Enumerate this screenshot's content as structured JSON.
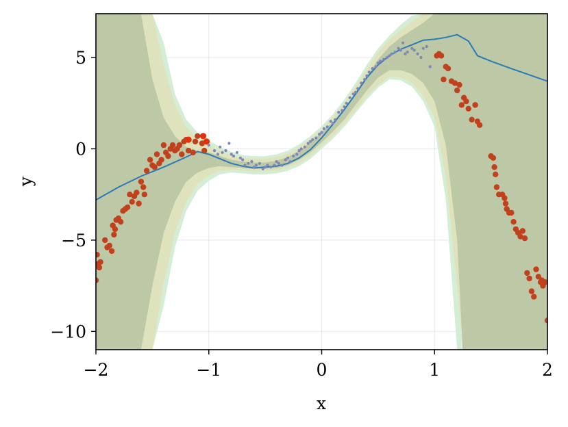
{
  "chart_data": {
    "type": "scatter",
    "xlabel": "x",
    "ylabel": "y",
    "xlim": [
      -2,
      2
    ],
    "ylim": [
      -11,
      7.4
    ],
    "grid": true,
    "xticks": [
      -2,
      -1,
      0,
      1,
      2
    ],
    "xtick_labels": [
      "−2",
      "−1",
      "0",
      "1",
      "2"
    ],
    "yticks": [
      5,
      0,
      -5,
      -10
    ],
    "ytick_labels": [
      "5",
      "0",
      "−5",
      "−10"
    ],
    "colors": {
      "band_outer": "#d4eed6",
      "band_mid": "#dfe3bd",
      "band_inner": "#bcc8a6",
      "prediction_line": "#2a7ab8",
      "test_points": "#c0411c",
      "highlight_points": "#e4300a",
      "train_points": "#7f86b8"
    },
    "bands": {
      "x": [
        -2.0,
        -1.9,
        -1.8,
        -1.7,
        -1.6,
        -1.5,
        -1.4,
        -1.3,
        -1.2,
        -1.1,
        -1.0,
        -0.9,
        -0.8,
        -0.7,
        -0.6,
        -0.5,
        -0.4,
        -0.3,
        -0.2,
        -0.1,
        0.0,
        0.1,
        0.2,
        0.3,
        0.4,
        0.5,
        0.6,
        0.7,
        0.8,
        0.9,
        1.0,
        1.1,
        1.2,
        1.25,
        1.3,
        1.4,
        1.5,
        1.6,
        1.7,
        1.8,
        1.9,
        2.0
      ],
      "inner_upper": [
        7.4,
        7.4,
        7.4,
        7.4,
        7.4,
        3.8,
        1.7,
        0.7,
        0.1,
        -0.1,
        -0.2,
        -0.4,
        -0.6,
        -0.7,
        -0.75,
        -0.75,
        -0.65,
        -0.45,
        -0.1,
        0.35,
        0.9,
        1.5,
        2.2,
        3.1,
        4.0,
        4.9,
        5.6,
        6.1,
        6.5,
        6.9,
        7.4,
        7.4,
        7.4,
        7.4,
        7.4,
        7.4,
        7.4,
        7.4,
        7.4,
        7.4,
        7.4,
        7.4
      ],
      "inner_lower": [
        -11,
        -11,
        -11,
        -11,
        -11,
        -7.5,
        -4.6,
        -2.9,
        -1.8,
        -1.3,
        -1.05,
        -0.95,
        -1.0,
        -1.05,
        -1.1,
        -1.1,
        -1.05,
        -0.9,
        -0.6,
        -0.2,
        0.35,
        0.95,
        1.6,
        2.4,
        3.2,
        3.9,
        4.3,
        4.3,
        4.1,
        3.6,
        2.6,
        0.2,
        -5.0,
        -11,
        -11,
        -11,
        -11,
        -11,
        -11,
        -11,
        -11,
        -11
      ],
      "mid_upper": [
        7.4,
        7.4,
        7.4,
        7.4,
        7.4,
        7.4,
        4.6,
        2.4,
        1.2,
        0.6,
        0.2,
        -0.1,
        -0.35,
        -0.5,
        -0.55,
        -0.55,
        -0.45,
        -0.25,
        0.1,
        0.55,
        1.1,
        1.75,
        2.5,
        3.4,
        4.4,
        5.3,
        6.0,
        6.5,
        7.0,
        7.4,
        7.4,
        7.4,
        7.4,
        7.4,
        7.4,
        7.4,
        7.4,
        7.4,
        7.4,
        7.4,
        7.4,
        7.4
      ],
      "mid_lower": [
        -11,
        -11,
        -11,
        -11,
        -11,
        -11,
        -7.4,
        -4.6,
        -2.9,
        -1.9,
        -1.45,
        -1.2,
        -1.15,
        -1.2,
        -1.25,
        -1.25,
        -1.2,
        -1.05,
        -0.8,
        -0.4,
        0.15,
        0.7,
        1.35,
        2.1,
        2.9,
        3.5,
        3.95,
        3.9,
        3.6,
        2.9,
        1.7,
        -1.5,
        -7.5,
        -11,
        -11,
        -11,
        -11,
        -11,
        -11,
        -11,
        -11,
        -11
      ],
      "outer_upper": [
        7.4,
        7.4,
        7.4,
        7.4,
        7.4,
        7.4,
        5.8,
        3.0,
        1.6,
        0.9,
        0.45,
        0.1,
        -0.15,
        -0.35,
        -0.4,
        -0.4,
        -0.3,
        -0.1,
        0.25,
        0.7,
        1.25,
        1.9,
        2.7,
        3.6,
        4.6,
        5.5,
        6.2,
        6.8,
        7.3,
        7.4,
        7.4,
        7.4,
        7.4,
        7.4,
        7.4,
        7.4,
        7.4,
        7.4,
        7.4,
        7.4,
        7.4,
        7.4
      ],
      "outer_lower": [
        -11,
        -11,
        -11,
        -11,
        -11,
        -11,
        -8.6,
        -5.4,
        -3.4,
        -2.3,
        -1.75,
        -1.4,
        -1.3,
        -1.35,
        -1.4,
        -1.4,
        -1.35,
        -1.2,
        -0.95,
        -0.55,
        0.0,
        0.55,
        1.2,
        1.95,
        2.7,
        3.35,
        3.8,
        3.75,
        3.4,
        2.6,
        1.2,
        -2.8,
        -11,
        -11,
        -11,
        -11,
        -11,
        -11,
        -11,
        -11,
        -11,
        -11
      ]
    },
    "series": [
      {
        "type": "line",
        "x": [
          -2.0,
          -1.8,
          -1.6,
          -1.4,
          -1.2,
          -1.1,
          -1.0,
          -0.9,
          -0.8,
          -0.7,
          -0.6,
          -0.5,
          -0.4,
          -0.3,
          -0.2,
          -0.1,
          0.0,
          0.1,
          0.2,
          0.3,
          0.4,
          0.5,
          0.6,
          0.7,
          0.8,
          0.9,
          1.0,
          1.1,
          1.2,
          1.3,
          1.38,
          1.5,
          1.7,
          2.0
        ],
        "y": [
          -2.8,
          -2.1,
          -1.5,
          -1.0,
          -0.45,
          -0.15,
          -0.3,
          -0.55,
          -0.8,
          -0.95,
          -1.05,
          -1.0,
          -0.95,
          -0.8,
          -0.5,
          -0.05,
          0.6,
          1.35,
          2.15,
          3.0,
          3.9,
          4.6,
          5.1,
          5.45,
          5.7,
          5.95,
          6.0,
          6.1,
          6.25,
          5.9,
          5.1,
          4.8,
          4.35,
          3.7
        ]
      },
      {
        "type": "scatter",
        "role": "test",
        "x": [
          -2.0,
          -1.99,
          -1.98,
          -1.97,
          -1.96,
          -1.92,
          -1.9,
          -1.88,
          -1.86,
          -1.85,
          -1.84,
          -1.83,
          -1.82,
          -1.8,
          -1.78,
          -1.76,
          -1.74,
          -1.72,
          -1.7,
          -1.68,
          -1.66,
          -1.64,
          -1.62,
          -1.6,
          -1.58,
          -1.57,
          -1.55,
          -1.52,
          -1.5,
          -1.48,
          -1.46,
          -1.44,
          -1.42,
          -1.4,
          -1.38,
          -1.36,
          -1.34,
          -1.32,
          -1.3,
          -1.28,
          -1.26,
          -1.24,
          -1.22,
          -1.2,
          -1.18,
          -1.14,
          -1.12,
          -1.1,
          -1.06,
          -1.04,
          1.02,
          1.04,
          1.06,
          1.08,
          1.1,
          1.12,
          1.15,
          1.18,
          1.2,
          1.22,
          1.24,
          1.26,
          1.28,
          1.3,
          1.33,
          1.36,
          1.38,
          1.4,
          1.5,
          1.52,
          1.53,
          1.54,
          1.55,
          1.57,
          1.6,
          1.62,
          1.63,
          1.64,
          1.66,
          1.68,
          1.7,
          1.72,
          1.74,
          1.76,
          1.78,
          1.8,
          1.82,
          1.84,
          1.86,
          1.88,
          1.9,
          1.92,
          1.94,
          1.95,
          1.96,
          1.98,
          2.0
        ],
        "y": [
          -7.2,
          -5.8,
          -6.3,
          -6.5,
          -6.2,
          -5.0,
          -5.4,
          -5.3,
          -5.6,
          -4.2,
          -4.7,
          -4.4,
          -3.9,
          -3.8,
          -4.0,
          -3.4,
          -3.3,
          -3.2,
          -2.5,
          -2.9,
          -2.6,
          -2.4,
          -3.0,
          -1.8,
          -2.1,
          -2.5,
          -1.2,
          -0.6,
          -0.9,
          -1.0,
          -0.3,
          -0.8,
          -0.6,
          0.2,
          -0.2,
          -0.4,
          0.0,
          0.2,
          -0.1,
          0.0,
          0.2,
          -0.3,
          0.4,
          0.5,
          -0.1,
          -0.2,
          0.4,
          0.7,
          0.3,
          -0.1,
          5.1,
          5.2,
          5.1,
          3.8,
          4.5,
          4.4,
          3.7,
          3.6,
          3.2,
          3.5,
          2.4,
          2.8,
          2.6,
          2.2,
          1.6,
          2.4,
          1.5,
          1.3,
          -0.4,
          -0.5,
          -1.0,
          -1.4,
          -2.1,
          -2.5,
          -2.5,
          -2.7,
          -3.0,
          -3.3,
          -3.5,
          -3.5,
          -4.0,
          -4.4,
          -4.6,
          -4.8,
          -4.5,
          -4.9,
          -6.8,
          -7.1,
          -7.8,
          -8.1,
          -6.6,
          -7.0,
          -7.3,
          -7.2,
          -7.5,
          -7.3,
          -9.4
        ]
      },
      {
        "type": "scatter",
        "role": "highlight",
        "x": [
          -1.18,
          -1.05,
          -1.02
        ],
        "y": [
          0.5,
          0.7,
          0.4
        ]
      },
      {
        "type": "scatter",
        "role": "train",
        "x": [
          -1.0,
          -0.95,
          -0.92,
          -0.9,
          -0.88,
          -0.85,
          -0.82,
          -0.8,
          -0.78,
          -0.75,
          -0.72,
          -0.7,
          -0.68,
          -0.65,
          -0.62,
          -0.6,
          -0.58,
          -0.55,
          -0.52,
          -0.5,
          -0.48,
          -0.45,
          -0.42,
          -0.4,
          -0.38,
          -0.35,
          -0.32,
          -0.3,
          -0.28,
          -0.25,
          -0.22,
          -0.2,
          -0.18,
          -0.15,
          -0.12,
          -0.1,
          -0.08,
          -0.05,
          -0.02,
          0.0,
          0.02,
          0.05,
          0.08,
          0.1,
          0.12,
          0.15,
          0.18,
          0.2,
          0.22,
          0.25,
          0.28,
          0.3,
          0.32,
          0.35,
          0.38,
          0.4,
          0.42,
          0.45,
          0.48,
          0.5,
          0.52,
          0.55,
          0.58,
          0.6,
          0.62,
          0.65,
          0.68,
          0.7,
          0.72,
          0.74,
          0.76,
          0.8,
          0.82,
          0.85,
          0.88,
          0.9,
          0.93,
          0.96
        ],
        "y": [
          0.2,
          -0.1,
          -0.3,
          0.1,
          -0.2,
          -0.1,
          0.3,
          -0.3,
          -0.4,
          -0.2,
          -0.5,
          -0.6,
          -0.9,
          -0.8,
          -0.7,
          -1.0,
          -0.9,
          -0.8,
          -1.1,
          -1.0,
          -0.9,
          -1.0,
          -0.9,
          -0.7,
          -0.8,
          -0.9,
          -0.6,
          -0.5,
          -0.7,
          -0.4,
          -0.3,
          -0.1,
          0.0,
          0.1,
          0.3,
          0.4,
          0.5,
          0.6,
          0.8,
          0.9,
          1.1,
          1.2,
          1.5,
          1.4,
          1.6,
          2.0,
          2.1,
          2.3,
          2.5,
          2.8,
          3.0,
          3.1,
          3.3,
          3.6,
          3.8,
          4.0,
          4.2,
          4.4,
          4.5,
          4.7,
          4.8,
          4.9,
          5.0,
          5.1,
          5.2,
          5.3,
          5.5,
          5.4,
          5.8,
          5.2,
          5.3,
          5.5,
          5.4,
          5.2,
          5.0,
          5.5,
          5.6,
          4.5
        ]
      }
    ]
  }
}
